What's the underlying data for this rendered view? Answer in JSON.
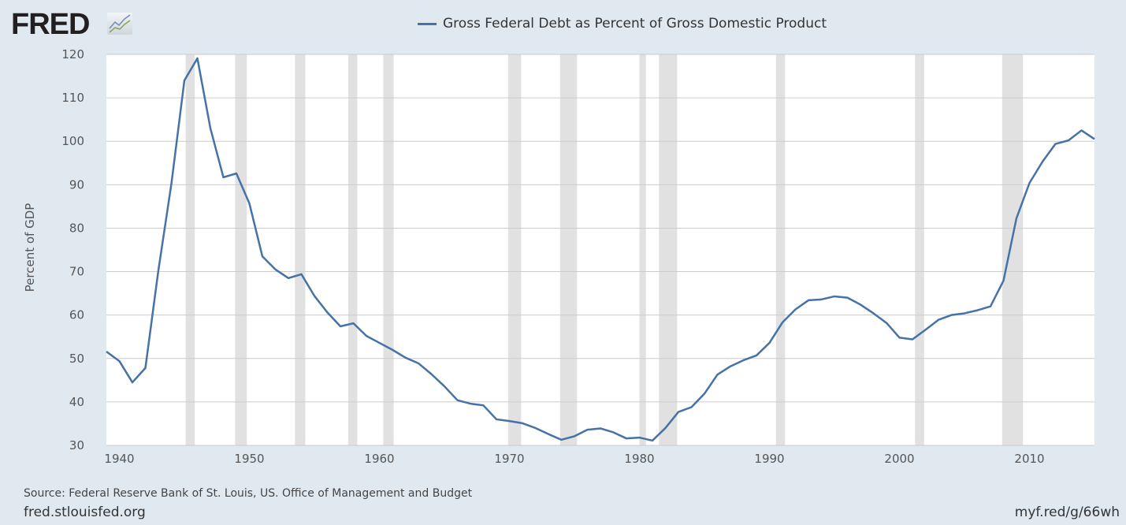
{
  "header": {
    "logo": "FRED",
    "logo_icon": "chart-line-icon"
  },
  "footer": {
    "source": "Source: Federal Reserve Bank of St. Louis, US. Office of Management and Budget",
    "site": "fred.stlouisfed.org",
    "shortlink": "myf.red/g/66wh"
  },
  "colors": {
    "line": "#4572a7",
    "recession": "#e1e1e1",
    "background": "#e1e9f0",
    "grid": "#cccccc"
  },
  "chart_data": {
    "type": "line",
    "title": "",
    "xlabel": "",
    "ylabel": "Percent of GDP",
    "xlim": [
      1939,
      2015
    ],
    "ylim": [
      30,
      120
    ],
    "grid": true,
    "legend_placement": "top-center",
    "xticks": [
      "1940",
      "1950",
      "1960",
      "1970",
      "1980",
      "1990",
      "2000",
      "2010"
    ],
    "yticks": [
      "30",
      "40",
      "50",
      "60",
      "70",
      "80",
      "90",
      "100",
      "110",
      "120"
    ],
    "recessions": [
      [
        1945.1,
        1945.8
      ],
      [
        1948.9,
        1949.8
      ],
      [
        1953.5,
        1954.3
      ],
      [
        1957.6,
        1958.3
      ],
      [
        1960.3,
        1961.1
      ],
      [
        1969.9,
        1970.9
      ],
      [
        1973.9,
        1975.2
      ],
      [
        1980.0,
        1980.5
      ],
      [
        1981.5,
        1982.9
      ],
      [
        1990.5,
        1991.2
      ],
      [
        2001.2,
        2001.9
      ],
      [
        2007.9,
        2009.5
      ]
    ],
    "series": [
      {
        "name": "Gross Federal Debt as Percent of Gross Domestic Product",
        "x": [
          1939,
          1940,
          1941,
          1942,
          1943,
          1944,
          1945,
          1946,
          1947,
          1948,
          1949,
          1950,
          1951,
          1952,
          1953,
          1954,
          1955,
          1956,
          1957,
          1958,
          1959,
          1960,
          1961,
          1962,
          1963,
          1964,
          1965,
          1966,
          1967,
          1968,
          1969,
          1970,
          1971,
          1972,
          1973,
          1974,
          1975,
          1976,
          1977,
          1978,
          1979,
          1980,
          1981,
          1982,
          1983,
          1984,
          1985,
          1986,
          1987,
          1988,
          1989,
          1990,
          1991,
          1992,
          1993,
          1994,
          1995,
          1996,
          1997,
          1998,
          1999,
          2000,
          2001,
          2002,
          2003,
          2004,
          2005,
          2006,
          2007,
          2008,
          2009,
          2010,
          2011,
          2012,
          2013,
          2014,
          2015
        ],
        "values": [
          51.6,
          49.4,
          44.5,
          47.8,
          70.3,
          90.2,
          114.0,
          119.1,
          103.0,
          91.7,
          92.6,
          85.7,
          73.5,
          70.5,
          68.5,
          69.4,
          64.4,
          60.6,
          57.4,
          58.1,
          55.2,
          53.6,
          52.0,
          50.2,
          48.9,
          46.4,
          43.6,
          40.4,
          39.6,
          39.2,
          36.0,
          35.6,
          35.1,
          34.0,
          32.6,
          31.3,
          32.1,
          33.6,
          33.9,
          33.0,
          31.6,
          31.8,
          31.1,
          34.0,
          37.7,
          38.8,
          41.9,
          46.3,
          48.2,
          49.6,
          50.7,
          53.6,
          58.3,
          61.3,
          63.4,
          63.6,
          64.3,
          64.0,
          62.4,
          60.4,
          58.2,
          54.8,
          54.4,
          56.6,
          58.9,
          60.0,
          60.4,
          61.1,
          62.0,
          67.9,
          82.3,
          90.4,
          95.3,
          99.4,
          100.2,
          102.5,
          100.5
        ]
      }
    ]
  }
}
